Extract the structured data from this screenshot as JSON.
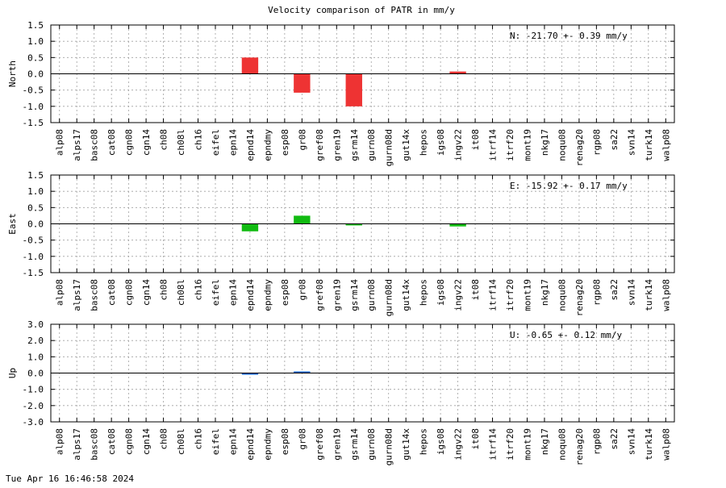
{
  "title": "Velocity comparison of PATR in mm/y",
  "footer": "Tue Apr 16 16:46:58 2024",
  "chart_data": [
    {
      "type": "bar",
      "ylabel": "North",
      "annotation": "N: -21.70 +-  0.39 mm/y",
      "color": "#ee3333",
      "ylim": [
        -1.5,
        1.5
      ],
      "yticks": [
        1.5,
        1.0,
        0.5,
        0.0,
        -0.5,
        -1.0,
        -1.5
      ],
      "ytick_labels": [
        "1.5",
        "1.0",
        "0.5",
        "0.0",
        "-0.5",
        "-1.0",
        "-1.5"
      ],
      "grid": true,
      "categories": [
        "alp08",
        "alps17",
        "basc08",
        "cat08",
        "cgn08",
        "cgn14",
        "ch08",
        "ch08l",
        "ch16",
        "eifel",
        "epn14",
        "epnd14",
        "epndmy",
        "esp08",
        "gr08",
        "gref08",
        "gren19",
        "gsrm14",
        "gurn08",
        "gurn08d",
        "gut14x",
        "hepos",
        "igs08",
        "ingv22",
        "it08",
        "itrf14",
        "itrf20",
        "mont19",
        "nkg17",
        "noqu08",
        "renag20",
        "rgp08",
        "sa22",
        "svn14",
        "turk14",
        "walp08"
      ],
      "values": [
        null,
        null,
        null,
        null,
        null,
        null,
        null,
        null,
        null,
        null,
        null,
        0.5,
        null,
        null,
        -0.58,
        null,
        null,
        -1.0,
        null,
        null,
        null,
        null,
        null,
        0.07,
        null,
        null,
        null,
        null,
        null,
        null,
        null,
        null,
        null,
        null,
        null,
        null
      ]
    },
    {
      "type": "bar",
      "ylabel": "East",
      "annotation": "E: -15.92 +-  0.17 mm/y",
      "color": "#11bb11",
      "ylim": [
        -1.5,
        1.5
      ],
      "yticks": [
        1.5,
        1.0,
        0.5,
        0.0,
        -0.5,
        -1.0,
        -1.5
      ],
      "ytick_labels": [
        "1.5",
        "1.0",
        "0.5",
        "0.0",
        "-0.5",
        "-1.0",
        "-1.5"
      ],
      "grid": true,
      "categories": [
        "alp08",
        "alps17",
        "basc08",
        "cat08",
        "cgn08",
        "cgn14",
        "ch08",
        "ch08l",
        "ch16",
        "eifel",
        "epn14",
        "epnd14",
        "epndmy",
        "esp08",
        "gr08",
        "gref08",
        "gren19",
        "gsrm14",
        "gurn08",
        "gurn08d",
        "gut14x",
        "hepos",
        "igs08",
        "ingv22",
        "it08",
        "itrf14",
        "itrf20",
        "mont19",
        "nkg17",
        "noqu08",
        "renag20",
        "rgp08",
        "sa22",
        "svn14",
        "turk14",
        "walp08"
      ],
      "values": [
        null,
        null,
        null,
        null,
        null,
        null,
        null,
        null,
        null,
        null,
        null,
        -0.23,
        null,
        null,
        0.25,
        null,
        null,
        -0.03,
        null,
        null,
        null,
        null,
        null,
        -0.08,
        null,
        null,
        null,
        null,
        null,
        null,
        null,
        null,
        null,
        null,
        null,
        null
      ]
    },
    {
      "type": "bar",
      "ylabel": "Up",
      "annotation": "U:  -0.65 +-  0.12 mm/y",
      "color": "#1166cc",
      "ylim": [
        -3.0,
        3.0
      ],
      "yticks": [
        3.0,
        2.0,
        1.0,
        0.0,
        -1.0,
        -2.0,
        -3.0
      ],
      "ytick_labels": [
        "3.0",
        "2.0",
        "1.0",
        "0.0",
        "-1.0",
        "-2.0",
        "-3.0"
      ],
      "grid": true,
      "categories": [
        "alp08",
        "alps17",
        "basc08",
        "cat08",
        "cgn08",
        "cgn14",
        "ch08",
        "ch08l",
        "ch16",
        "eifel",
        "epn14",
        "epnd14",
        "epndmy",
        "esp08",
        "gr08",
        "gref08",
        "gren19",
        "gsrm14",
        "gurn08",
        "gurn08d",
        "gut14x",
        "hepos",
        "igs08",
        "ingv22",
        "it08",
        "itrf14",
        "itrf20",
        "mont19",
        "nkg17",
        "noqu08",
        "renag20",
        "rgp08",
        "sa22",
        "svn14",
        "turk14",
        "walp08"
      ],
      "values": [
        null,
        null,
        null,
        null,
        null,
        null,
        null,
        null,
        null,
        null,
        null,
        -0.1,
        null,
        null,
        0.1,
        null,
        null,
        null,
        null,
        null,
        null,
        null,
        null,
        null,
        null,
        null,
        null,
        null,
        null,
        null,
        null,
        null,
        null,
        null,
        null,
        null
      ]
    }
  ]
}
